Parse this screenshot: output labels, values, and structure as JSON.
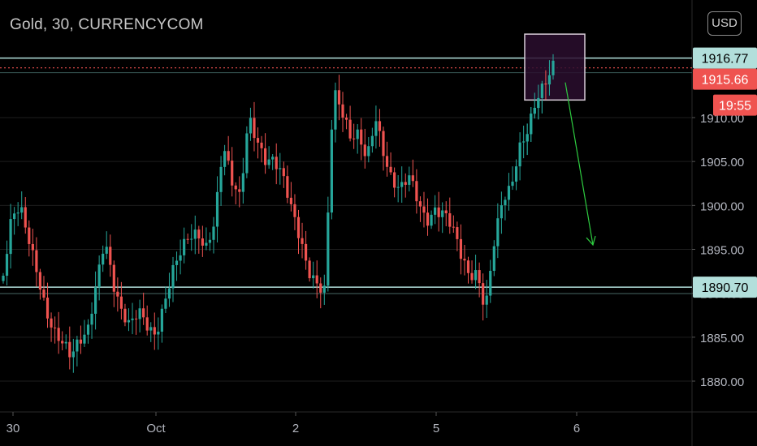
{
  "header": {
    "title": "Gold, 30, CURRENCYCOM",
    "currency_button": "USD"
  },
  "colors": {
    "background": "#000000",
    "bull": "#26a69a",
    "bear": "#ef5350",
    "level_line": "#b2dfdb",
    "current_price_line": "#ef5350",
    "arrow": "#2ecc40",
    "box_fill": "#2a0e2e",
    "box_stroke": "#d8cdd8",
    "axis_text": "#b2b5be",
    "grid": "#1e1e1e"
  },
  "chart_data": {
    "type": "candlestick",
    "symbol": "Gold",
    "interval": "30",
    "source": "CURRENCYCOM",
    "ylim": [
      1876.5,
      1919.5
    ],
    "y_ticks": [
      1880.0,
      1885.0,
      1890.0,
      1895.0,
      1900.0,
      1905.0,
      1910.0
    ],
    "x_ticks": [
      "30",
      "Oct",
      "2",
      "5",
      "6"
    ],
    "price_labels": [
      {
        "name": "resistance",
        "value": "1916.77"
      },
      {
        "name": "last-price",
        "value": "1915.66"
      },
      {
        "name": "countdown",
        "value": "19:55"
      },
      {
        "name": "support",
        "value": "1890.70"
      }
    ],
    "levels": {
      "resistance": 1916.77,
      "support": 1890.7,
      "last": 1915.66
    },
    "anchors": [
      1892,
      1898,
      1899,
      1896,
      1893,
      1889,
      1886,
      1884,
      1882,
      1884,
      1886,
      1892,
      1897,
      1891,
      1887,
      1885.5,
      1888,
      1887,
      1886,
      1889,
      1892,
      1894,
      1896,
      1897,
      1896,
      1899,
      1907,
      1902,
      1900,
      1910,
      1908,
      1906,
      1905.5,
      1903,
      1899,
      1896,
      1893,
      1892,
      1891,
      1913,
      1910,
      1907,
      1908,
      1906,
      1911,
      1906,
      1902,
      1901,
      1903,
      1901,
      1899,
      1900,
      1899,
      1897,
      1894,
      1892,
      1893,
      1889,
      1896,
      1900,
      1901,
      1906,
      1909,
      1913,
      1914.5,
      1915.66
    ],
    "annotations": [
      {
        "type": "box",
        "from_index": 63,
        "to_index": 69,
        "price_top": 1919.5,
        "price_bottom": 1912
      },
      {
        "type": "arrow",
        "direction": "down",
        "from_price": 1914,
        "to_price": 1895.5
      }
    ]
  }
}
